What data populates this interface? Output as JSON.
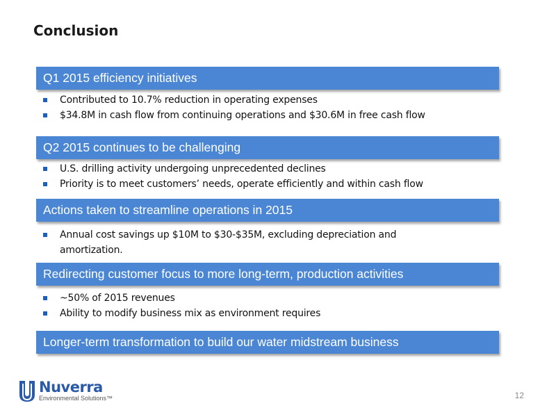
{
  "slide": {
    "title": "Conclusion",
    "page_number": "12"
  },
  "sections": [
    {
      "heading": "Q1 2015 efficiency initiatives",
      "bullets": [
        "Contributed to 10.7% reduction in operating expenses",
        "$34.8M in cash flow from continuing operations and $30.6M in free cash flow"
      ]
    },
    {
      "heading": "Q2 2015 continues to be challenging",
      "bullets": [
        "U.S. drilling activity undergoing unprecedented declines",
        "Priority is to meet customers’ needs, operate efficiently and within cash flow"
      ]
    },
    {
      "heading": "Actions taken to streamline operations in 2015",
      "bullets": [
        "Annual cost savings up $10M to $30-$35M, excluding depreciation and amortization."
      ]
    },
    {
      "heading": "Redirecting customer focus to more long-term, production activities",
      "bullets": [
        "~50% of 2015 revenues",
        "Ability to modify business mix as environment requires"
      ]
    },
    {
      "heading": "Longer-term transformation to build our water midstream business",
      "bullets": []
    }
  ],
  "logo": {
    "name": "Nuverra",
    "subtitle": "Environmental Solutions™"
  },
  "colors": {
    "banner": "#4a86d4",
    "bullet": "#1f5fb4",
    "logo": "#2a5aa8"
  }
}
